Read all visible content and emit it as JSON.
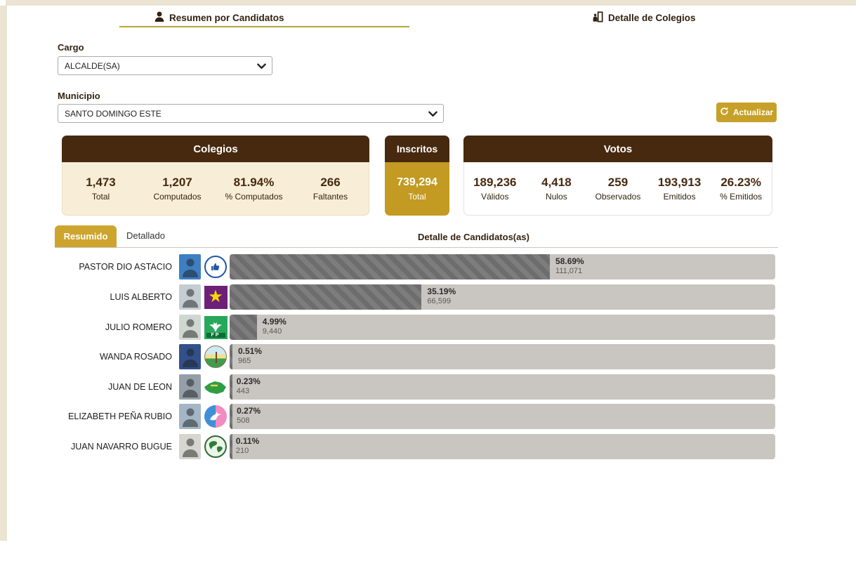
{
  "tabs": [
    {
      "label": "Resumen por Candidatos",
      "icon": "person-icon",
      "active": true
    },
    {
      "label": "Detalle de Colegios",
      "icon": "colegio-door-icon",
      "active": false
    }
  ],
  "filters": {
    "cargo_label": "Cargo",
    "cargo_value": "ALCALDE(SA)",
    "municipio_label": "Municipio",
    "municipio_value": "SANTO DOMINGO ESTE",
    "refresh_label": "Actualizar",
    "refresh_icon": "refresh-icon"
  },
  "summary_cards": {
    "colegios": {
      "title": "Colegios",
      "stats": [
        {
          "value": "1,473",
          "label": "Total"
        },
        {
          "value": "1,207",
          "label": "Computados"
        },
        {
          "value": "81.94%",
          "label": "% Computados"
        },
        {
          "value": "266",
          "label": "Faltantes"
        }
      ]
    },
    "inscritos": {
      "title": "Inscritos",
      "value": "739,294",
      "label": "Total"
    },
    "votos": {
      "title": "Votos",
      "stats": [
        {
          "value": "189,236",
          "label": "Válidos"
        },
        {
          "value": "4,418",
          "label": "Nulos"
        },
        {
          "value": "259",
          "label": "Observados"
        },
        {
          "value": "193,913",
          "label": "Emitidos"
        },
        {
          "value": "26.23%",
          "label": "% Emitidos"
        }
      ]
    }
  },
  "detail": {
    "tab_resumido": "Resumido",
    "tab_detallado": "Detallado",
    "title": "Detalle de Candidatos(as)"
  },
  "candidates": [
    {
      "name": "PASTOR DIO ASTACIO",
      "percent": "58.69%",
      "votes": "111,071",
      "pct": 58.69,
      "party_icon": "thumbs-up-circle-logo",
      "photo_color": "#3e7ec2"
    },
    {
      "name": "LUIS ALBERTO",
      "percent": "35.19%",
      "votes": "66,599",
      "pct": 35.19,
      "party_icon": "yellow-star-purple-square-logo",
      "photo_color": "#c3cdd3"
    },
    {
      "name": "JULIO ROMERO",
      "percent": "4.99%",
      "votes": "9,440",
      "pct": 4.99,
      "party_icon": "fp-green-square-logo",
      "photo_color": "#cfd8d0"
    },
    {
      "name": "WANDA ROSADO",
      "percent": "0.51%",
      "votes": "965",
      "pct": 0.51,
      "party_icon": "palm-seal-circle-logo",
      "photo_color": "#32508a"
    },
    {
      "name": "JUAN DE LEON",
      "percent": "0.23%",
      "votes": "443",
      "pct": 0.23,
      "party_icon": "green-island-map-logo",
      "photo_color": "#93a0aa"
    },
    {
      "name": "ELIZABETH PEÑA RUBIO",
      "percent": "0.27%",
      "votes": "508",
      "pct": 0.27,
      "party_icon": "dove-blue-pink-circle-logo",
      "photo_color": "#a2b6c5"
    },
    {
      "name": "JUAN NAVARRO BUGUE",
      "percent": "0.11%",
      "votes": "210",
      "pct": 0.11,
      "party_icon": "globe-circle-logo",
      "photo_color": "#d6d6cf"
    }
  ],
  "chart_data": {
    "type": "bar",
    "orientation": "horizontal",
    "title": "Detalle de Candidatos(as)",
    "categories": [
      "PASTOR DIO ASTACIO",
      "LUIS ALBERTO",
      "JULIO ROMERO",
      "WANDA ROSADO",
      "JUAN DE LEON",
      "ELIZABETH PEÑA RUBIO",
      "JUAN NAVARRO BUGUE"
    ],
    "series": [
      {
        "name": "% votos",
        "values": [
          58.69,
          35.19,
          4.99,
          0.51,
          0.23,
          0.27,
          0.11
        ]
      },
      {
        "name": "votos",
        "values": [
          111071,
          66599,
          9440,
          965,
          443,
          508,
          210
        ]
      }
    ],
    "xlim": [
      0,
      100
    ],
    "grid": false,
    "legend": false
  },
  "colors": {
    "brown_header": "#47290f",
    "cream_panel": "#f8eed8",
    "accent_gold": "#c7a02a",
    "tab_underline": "#b4a636",
    "bar_track": "#c9c5c1",
    "bar_fill": "#6d6d6d"
  }
}
